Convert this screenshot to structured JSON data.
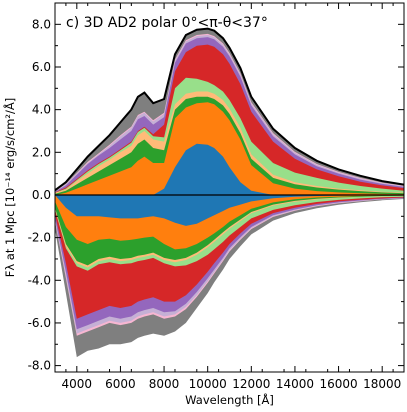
{
  "chart_data": {
    "type": "area",
    "title": "c) 3D AD2 polar 0°<π-θ<37°",
    "xlabel": "Wavelength [Å]",
    "ylabel": "Fλ at 1 Mpc [10⁻¹⁴ erg/s/cm²/Å]",
    "xlim": [
      3000,
      19000
    ],
    "ylim": [
      -8.3,
      9.0
    ],
    "xticks": [
      4000,
      6000,
      8000,
      10000,
      12000,
      14000,
      16000,
      18000
    ],
    "yticks": [
      -8.0,
      -6.0,
      -4.0,
      -2.0,
      0.0,
      2.0,
      4.0,
      6.0,
      8.0
    ],
    "x": [
      3000,
      3500,
      4000,
      4500,
      5000,
      5500,
      6000,
      6500,
      6800,
      7100,
      7500,
      8000,
      8500,
      9000,
      9500,
      10000,
      10300,
      10700,
      11000,
      11500,
      12000,
      13000,
      14000,
      15000,
      16000,
      17000,
      18000,
      19000
    ],
    "series_positive": [
      {
        "name": "blue",
        "color": "#1f77b4",
        "values": [
          0,
          0,
          0,
          0,
          0,
          0,
          0,
          0,
          0,
          0,
          0,
          0.3,
          1.3,
          2.1,
          2.4,
          2.35,
          2.2,
          1.8,
          1.3,
          0.6,
          0.2,
          0,
          0,
          0,
          0,
          0,
          0,
          0
        ]
      },
      {
        "name": "orange",
        "color": "#ff7f0e",
        "values": [
          0,
          0.1,
          0.3,
          0.5,
          0.7,
          0.9,
          1.1,
          1.3,
          1.6,
          1.8,
          1.5,
          1.5,
          3.6,
          4.1,
          4.3,
          4.35,
          4.25,
          3.9,
          3.5,
          2.6,
          1.4,
          0.55,
          0.3,
          0.18,
          0.12,
          0.08,
          0.05,
          0.03
        ]
      },
      {
        "name": "green",
        "color": "#2ca02c",
        "values": [
          0.05,
          0.2,
          0.5,
          0.8,
          1.1,
          1.4,
          1.7,
          2.0,
          2.4,
          2.6,
          2.2,
          2.1,
          4.0,
          4.5,
          4.6,
          4.6,
          4.5,
          4.2,
          3.8,
          2.9,
          1.7,
          0.8,
          0.5,
          0.35,
          0.25,
          0.18,
          0.12,
          0.08
        ]
      },
      {
        "name": "light-orange",
        "color": "#ffbb78",
        "values": [
          0.1,
          0.25,
          0.65,
          1.0,
          1.35,
          1.65,
          2.0,
          2.3,
          2.8,
          3.0,
          2.6,
          2.5,
          4.25,
          4.75,
          4.85,
          4.85,
          4.75,
          4.45,
          4.05,
          3.15,
          1.9,
          0.95,
          0.6,
          0.42,
          0.3,
          0.22,
          0.15,
          0.1
        ]
      },
      {
        "name": "light-green",
        "color": "#98df8a",
        "values": [
          0.1,
          0.3,
          0.7,
          1.1,
          1.45,
          1.75,
          2.1,
          2.45,
          2.95,
          3.15,
          2.75,
          2.7,
          5.0,
          5.5,
          5.45,
          5.3,
          5.15,
          4.85,
          4.45,
          3.6,
          2.5,
          1.5,
          1.05,
          0.8,
          0.58,
          0.42,
          0.3,
          0.2
        ]
      },
      {
        "name": "red",
        "color": "#d62728",
        "values": [
          0.12,
          0.35,
          0.75,
          1.15,
          1.5,
          1.8,
          2.15,
          2.5,
          3.0,
          3.2,
          2.85,
          3.3,
          5.8,
          6.7,
          7.0,
          7.05,
          6.95,
          6.6,
          6.15,
          5.2,
          3.9,
          2.5,
          1.7,
          1.2,
          0.88,
          0.62,
          0.45,
          0.32
        ]
      },
      {
        "name": "purple",
        "color": "#9467bd",
        "values": [
          0.15,
          0.45,
          0.95,
          1.45,
          1.85,
          2.2,
          2.6,
          3.0,
          3.55,
          3.7,
          3.3,
          3.65,
          6.2,
          7.1,
          7.35,
          7.4,
          7.3,
          6.95,
          6.5,
          5.55,
          4.2,
          2.75,
          1.9,
          1.35,
          1.0,
          0.72,
          0.52,
          0.38
        ]
      },
      {
        "name": "lavender",
        "color": "#c5b0d5",
        "values": [
          0.17,
          0.5,
          1.0,
          1.5,
          1.9,
          2.3,
          2.75,
          3.15,
          3.7,
          3.85,
          3.45,
          3.8,
          6.3,
          7.2,
          7.45,
          7.5,
          7.4,
          7.05,
          6.6,
          5.65,
          4.3,
          2.85,
          1.98,
          1.42,
          1.05,
          0.77,
          0.56,
          0.41
        ]
      },
      {
        "name": "pink",
        "color": "#f7b6d2",
        "values": [
          0.18,
          0.52,
          1.03,
          1.55,
          1.95,
          2.35,
          2.8,
          3.2,
          3.75,
          3.9,
          3.5,
          3.85,
          6.35,
          7.25,
          7.5,
          7.55,
          7.45,
          7.1,
          6.65,
          5.7,
          4.35,
          2.9,
          2.02,
          1.45,
          1.08,
          0.8,
          0.58,
          0.43
        ]
      },
      {
        "name": "gray",
        "color": "#7f7f7f",
        "values": [
          0.22,
          0.6,
          1.2,
          1.8,
          2.3,
          2.8,
          3.4,
          4.0,
          4.6,
          4.8,
          4.3,
          4.5,
          6.6,
          7.5,
          7.75,
          7.8,
          7.7,
          7.35,
          6.9,
          5.95,
          4.6,
          3.1,
          2.2,
          1.6,
          1.2,
          0.9,
          0.65,
          0.48
        ]
      }
    ],
    "series_negative": [
      {
        "name": "blue",
        "color": "#1f77b4",
        "values": [
          0,
          -0.6,
          -1.0,
          -1.0,
          -1.0,
          -1.05,
          -1.1,
          -1.1,
          -1.1,
          -1.05,
          -1.0,
          -1.1,
          -1.3,
          -1.45,
          -1.35,
          -1.1,
          -0.95,
          -0.75,
          -0.6,
          -0.45,
          -0.3,
          -0.15,
          -0.08,
          -0.05,
          -0.03,
          -0.02,
          -0.01,
          0
        ]
      },
      {
        "name": "orange",
        "color": "#ff7f0e",
        "values": [
          -0.3,
          -1.5,
          -2.1,
          -2.3,
          -2.1,
          -2.05,
          -2.15,
          -2.1,
          -2.05,
          -2.0,
          -1.95,
          -2.3,
          -2.55,
          -2.5,
          -2.3,
          -2.0,
          -1.8,
          -1.5,
          -1.25,
          -0.95,
          -0.65,
          -0.35,
          -0.2,
          -0.12,
          -0.08,
          -0.05,
          -0.03,
          -0.02
        ]
      },
      {
        "name": "green",
        "color": "#2ca02c",
        "values": [
          -0.6,
          -2.3,
          -3.1,
          -3.3,
          -3.0,
          -2.9,
          -3.0,
          -2.95,
          -2.85,
          -2.8,
          -2.7,
          -2.95,
          -3.05,
          -2.95,
          -2.7,
          -2.35,
          -2.1,
          -1.75,
          -1.5,
          -1.15,
          -0.8,
          -0.45,
          -0.28,
          -0.18,
          -0.12,
          -0.08,
          -0.05,
          -0.03
        ]
      },
      {
        "name": "light-orange",
        "color": "#ffbb78",
        "values": [
          -0.65,
          -2.4,
          -3.2,
          -3.4,
          -3.1,
          -3.0,
          -3.1,
          -3.05,
          -2.95,
          -2.9,
          -2.8,
          -3.05,
          -3.15,
          -3.05,
          -2.8,
          -2.45,
          -2.2,
          -1.85,
          -1.58,
          -1.22,
          -0.86,
          -0.5,
          -0.32,
          -0.21,
          -0.14,
          -0.09,
          -0.06,
          -0.04
        ]
      },
      {
        "name": "light-green",
        "color": "#98df8a",
        "values": [
          -0.7,
          -2.5,
          -3.35,
          -3.55,
          -3.25,
          -3.15,
          -3.25,
          -3.2,
          -3.1,
          -3.05,
          -2.95,
          -3.2,
          -3.35,
          -3.3,
          -3.1,
          -2.8,
          -2.55,
          -2.2,
          -1.9,
          -1.5,
          -1.1,
          -0.7,
          -0.48,
          -0.33,
          -0.23,
          -0.16,
          -0.11,
          -0.08
        ]
      },
      {
        "name": "red",
        "color": "#d62728",
        "values": [
          -0.9,
          -3.2,
          -5.8,
          -5.6,
          -5.4,
          -5.2,
          -5.3,
          -5.2,
          -5.0,
          -4.9,
          -4.8,
          -5.0,
          -5.0,
          -4.7,
          -4.2,
          -3.6,
          -3.2,
          -2.7,
          -2.3,
          -1.8,
          -1.35,
          -0.85,
          -0.6,
          -0.42,
          -0.3,
          -0.22,
          -0.16,
          -0.12
        ]
      },
      {
        "name": "purple",
        "color": "#9467bd",
        "values": [
          -1.1,
          -3.6,
          -6.3,
          -6.1,
          -5.9,
          -5.7,
          -5.8,
          -5.7,
          -5.5,
          -5.4,
          -5.3,
          -5.5,
          -5.45,
          -5.1,
          -4.55,
          -3.9,
          -3.5,
          -2.95,
          -2.5,
          -1.98,
          -1.5,
          -0.95,
          -0.68,
          -0.48,
          -0.35,
          -0.26,
          -0.19,
          -0.14
        ]
      },
      {
        "name": "lavender",
        "color": "#c5b0d5",
        "values": [
          -1.2,
          -3.8,
          -6.5,
          -6.3,
          -6.1,
          -5.9,
          -6.0,
          -5.9,
          -5.7,
          -5.6,
          -5.5,
          -5.7,
          -5.6,
          -5.25,
          -4.7,
          -4.05,
          -3.62,
          -3.05,
          -2.6,
          -2.05,
          -1.56,
          -1.0,
          -0.72,
          -0.51,
          -0.37,
          -0.28,
          -0.2,
          -0.15
        ]
      },
      {
        "name": "pink",
        "color": "#f7b6d2",
        "values": [
          -1.25,
          -3.9,
          -6.6,
          -6.4,
          -6.2,
          -6.0,
          -6.1,
          -6.0,
          -5.8,
          -5.7,
          -5.6,
          -5.8,
          -5.7,
          -5.35,
          -4.78,
          -4.12,
          -3.68,
          -3.1,
          -2.65,
          -2.1,
          -1.6,
          -1.03,
          -0.74,
          -0.53,
          -0.39,
          -0.29,
          -0.21,
          -0.16
        ]
      },
      {
        "name": "gray",
        "color": "#7f7f7f",
        "values": [
          -1.6,
          -4.6,
          -7.6,
          -7.3,
          -7.2,
          -7.0,
          -7.0,
          -6.9,
          -6.7,
          -6.6,
          -6.5,
          -6.6,
          -6.4,
          -6.0,
          -5.3,
          -4.6,
          -4.1,
          -3.5,
          -3.0,
          -2.4,
          -1.85,
          -1.2,
          -0.85,
          -0.62,
          -0.46,
          -0.34,
          -0.25,
          -0.19
        ]
      }
    ]
  }
}
